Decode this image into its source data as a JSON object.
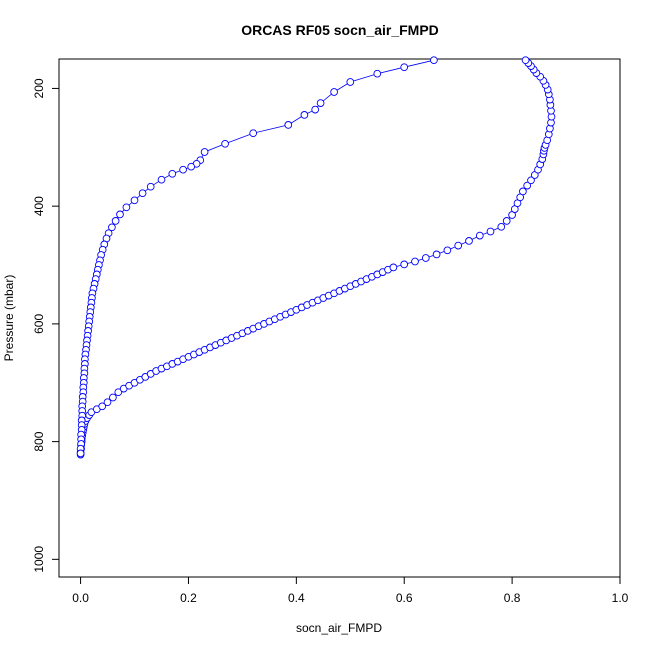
{
  "chart_data": {
    "type": "scatter",
    "title": "ORCAS RF05 socn_air_FMPD",
    "xlabel": "socn_air_FMPD",
    "ylabel": "Pressure (mbar)",
    "xlim": [
      -0.04,
      1.0
    ],
    "ylim": [
      1030,
      150
    ],
    "y_reversed": true,
    "xticks": [
      "0.0",
      "0.2",
      "0.4",
      "0.6",
      "0.8",
      "1.0"
    ],
    "yticks": [
      "200",
      "400",
      "600",
      "800",
      "1000"
    ],
    "grid": false,
    "marker": "open-circle",
    "connected": true,
    "colors": {
      "series": "#0000ff"
    },
    "series": [
      {
        "points": [
          {
            "x": 0.0,
            "y": 822
          },
          {
            "x": 0.0,
            "y": 818
          },
          {
            "x": 0.001,
            "y": 812
          },
          {
            "x": 0.001,
            "y": 806
          },
          {
            "x": 0.002,
            "y": 800
          },
          {
            "x": 0.002,
            "y": 795
          },
          {
            "x": 0.003,
            "y": 790
          },
          {
            "x": 0.004,
            "y": 785
          },
          {
            "x": 0.005,
            "y": 780
          },
          {
            "x": 0.006,
            "y": 775
          },
          {
            "x": 0.007,
            "y": 770
          },
          {
            "x": 0.009,
            "y": 765
          },
          {
            "x": 0.012,
            "y": 760
          },
          {
            "x": 0.016,
            "y": 755
          },
          {
            "x": 0.02,
            "y": 750
          },
          {
            "x": 0.03,
            "y": 745
          },
          {
            "x": 0.04,
            "y": 740
          },
          {
            "x": 0.05,
            "y": 733
          },
          {
            "x": 0.06,
            "y": 725
          },
          {
            "x": 0.07,
            "y": 716
          },
          {
            "x": 0.08,
            "y": 710
          },
          {
            "x": 0.09,
            "y": 705
          },
          {
            "x": 0.1,
            "y": 700
          },
          {
            "x": 0.11,
            "y": 695
          },
          {
            "x": 0.12,
            "y": 690
          },
          {
            "x": 0.13,
            "y": 685
          },
          {
            "x": 0.14,
            "y": 680
          },
          {
            "x": 0.15,
            "y": 676
          },
          {
            "x": 0.16,
            "y": 672
          },
          {
            "x": 0.17,
            "y": 668
          },
          {
            "x": 0.18,
            "y": 664
          },
          {
            "x": 0.19,
            "y": 660
          },
          {
            "x": 0.2,
            "y": 656
          },
          {
            "x": 0.21,
            "y": 652
          },
          {
            "x": 0.22,
            "y": 648
          },
          {
            "x": 0.23,
            "y": 644
          },
          {
            "x": 0.24,
            "y": 640
          },
          {
            "x": 0.25,
            "y": 636
          },
          {
            "x": 0.26,
            "y": 632
          },
          {
            "x": 0.27,
            "y": 628
          },
          {
            "x": 0.28,
            "y": 624
          },
          {
            "x": 0.29,
            "y": 620
          },
          {
            "x": 0.3,
            "y": 616
          },
          {
            "x": 0.31,
            "y": 612
          },
          {
            "x": 0.32,
            "y": 608
          },
          {
            "x": 0.33,
            "y": 604
          },
          {
            "x": 0.34,
            "y": 600
          },
          {
            "x": 0.35,
            "y": 596
          },
          {
            "x": 0.36,
            "y": 592
          },
          {
            "x": 0.37,
            "y": 588
          },
          {
            "x": 0.38,
            "y": 584
          },
          {
            "x": 0.39,
            "y": 580
          },
          {
            "x": 0.4,
            "y": 576
          },
          {
            "x": 0.41,
            "y": 572
          },
          {
            "x": 0.42,
            "y": 568
          },
          {
            "x": 0.43,
            "y": 564
          },
          {
            "x": 0.44,
            "y": 560
          },
          {
            "x": 0.45,
            "y": 556
          },
          {
            "x": 0.46,
            "y": 552
          },
          {
            "x": 0.47,
            "y": 548
          },
          {
            "x": 0.48,
            "y": 544
          },
          {
            "x": 0.49,
            "y": 540
          },
          {
            "x": 0.5,
            "y": 536
          },
          {
            "x": 0.51,
            "y": 532
          },
          {
            "x": 0.52,
            "y": 528
          },
          {
            "x": 0.53,
            "y": 524
          },
          {
            "x": 0.54,
            "y": 520
          },
          {
            "x": 0.55,
            "y": 516
          },
          {
            "x": 0.56,
            "y": 512
          },
          {
            "x": 0.57,
            "y": 508
          },
          {
            "x": 0.58,
            "y": 504
          },
          {
            "x": 0.6,
            "y": 499
          },
          {
            "x": 0.62,
            "y": 494
          },
          {
            "x": 0.64,
            "y": 488
          },
          {
            "x": 0.66,
            "y": 482
          },
          {
            "x": 0.68,
            "y": 475
          },
          {
            "x": 0.7,
            "y": 467
          },
          {
            "x": 0.72,
            "y": 459
          },
          {
            "x": 0.74,
            "y": 450
          },
          {
            "x": 0.76,
            "y": 443
          },
          {
            "x": 0.78,
            "y": 435
          },
          {
            "x": 0.79,
            "y": 425
          },
          {
            "x": 0.8,
            "y": 415
          },
          {
            "x": 0.805,
            "y": 405
          },
          {
            "x": 0.81,
            "y": 395
          },
          {
            "x": 0.815,
            "y": 385
          },
          {
            "x": 0.82,
            "y": 375
          },
          {
            "x": 0.828,
            "y": 365
          },
          {
            "x": 0.835,
            "y": 356
          },
          {
            "x": 0.842,
            "y": 347
          },
          {
            "x": 0.848,
            "y": 338
          },
          {
            "x": 0.852,
            "y": 329
          },
          {
            "x": 0.856,
            "y": 320
          },
          {
            "x": 0.858,
            "y": 312
          },
          {
            "x": 0.859,
            "y": 306
          },
          {
            "x": 0.86,
            "y": 301
          },
          {
            "x": 0.862,
            "y": 296
          },
          {
            "x": 0.865,
            "y": 288
          },
          {
            "x": 0.868,
            "y": 278
          },
          {
            "x": 0.87,
            "y": 268
          },
          {
            "x": 0.872,
            "y": 258
          },
          {
            "x": 0.873,
            "y": 248
          },
          {
            "x": 0.872,
            "y": 238
          },
          {
            "x": 0.871,
            "y": 228
          },
          {
            "x": 0.87,
            "y": 219
          },
          {
            "x": 0.868,
            "y": 210
          },
          {
            "x": 0.866,
            "y": 202
          },
          {
            "x": 0.862,
            "y": 194
          },
          {
            "x": 0.858,
            "y": 187
          },
          {
            "x": 0.852,
            "y": 180
          },
          {
            "x": 0.845,
            "y": 174
          },
          {
            "x": 0.84,
            "y": 168
          },
          {
            "x": 0.835,
            "y": 162
          },
          {
            "x": 0.83,
            "y": 157
          },
          {
            "x": 0.825,
            "y": 152
          }
        ]
      },
      {
        "points": [
          {
            "x": 0.655,
            "y": 152
          },
          {
            "x": 0.6,
            "y": 164
          },
          {
            "x": 0.55,
            "y": 175
          },
          {
            "x": 0.5,
            "y": 189
          },
          {
            "x": 0.47,
            "y": 206
          },
          {
            "x": 0.445,
            "y": 225
          },
          {
            "x": 0.435,
            "y": 236
          },
          {
            "x": 0.415,
            "y": 245
          },
          {
            "x": 0.385,
            "y": 262
          },
          {
            "x": 0.32,
            "y": 276
          },
          {
            "x": 0.268,
            "y": 294
          },
          {
            "x": 0.23,
            "y": 308
          },
          {
            "x": 0.222,
            "y": 322
          },
          {
            "x": 0.215,
            "y": 328
          },
          {
            "x": 0.205,
            "y": 333
          },
          {
            "x": 0.19,
            "y": 338
          },
          {
            "x": 0.17,
            "y": 345
          },
          {
            "x": 0.15,
            "y": 355
          },
          {
            "x": 0.13,
            "y": 367
          },
          {
            "x": 0.115,
            "y": 378
          },
          {
            "x": 0.1,
            "y": 390
          },
          {
            "x": 0.085,
            "y": 402
          },
          {
            "x": 0.073,
            "y": 414
          },
          {
            "x": 0.065,
            "y": 425
          },
          {
            "x": 0.058,
            "y": 436
          },
          {
            "x": 0.052,
            "y": 446
          },
          {
            "x": 0.048,
            "y": 455
          },
          {
            "x": 0.044,
            "y": 465
          },
          {
            "x": 0.041,
            "y": 474
          },
          {
            "x": 0.038,
            "y": 483
          },
          {
            "x": 0.036,
            "y": 492
          },
          {
            "x": 0.034,
            "y": 500
          },
          {
            "x": 0.032,
            "y": 508
          },
          {
            "x": 0.03,
            "y": 516
          },
          {
            "x": 0.028,
            "y": 524
          },
          {
            "x": 0.026,
            "y": 532
          },
          {
            "x": 0.024,
            "y": 540
          },
          {
            "x": 0.022,
            "y": 548
          },
          {
            "x": 0.021,
            "y": 556
          },
          {
            "x": 0.02,
            "y": 564
          },
          {
            "x": 0.019,
            "y": 572
          },
          {
            "x": 0.018,
            "y": 580
          },
          {
            "x": 0.017,
            "y": 588
          },
          {
            "x": 0.016,
            "y": 596
          },
          {
            "x": 0.015,
            "y": 604
          },
          {
            "x": 0.014,
            "y": 612
          },
          {
            "x": 0.013,
            "y": 620
          },
          {
            "x": 0.012,
            "y": 628
          },
          {
            "x": 0.011,
            "y": 636
          },
          {
            "x": 0.01,
            "y": 644
          },
          {
            "x": 0.009,
            "y": 652
          },
          {
            "x": 0.008,
            "y": 660
          },
          {
            "x": 0.008,
            "y": 668
          },
          {
            "x": 0.007,
            "y": 676
          },
          {
            "x": 0.007,
            "y": 684
          },
          {
            "x": 0.006,
            "y": 692
          },
          {
            "x": 0.006,
            "y": 700
          },
          {
            "x": 0.005,
            "y": 708
          },
          {
            "x": 0.005,
            "y": 716
          },
          {
            "x": 0.004,
            "y": 724
          },
          {
            "x": 0.004,
            "y": 732
          },
          {
            "x": 0.003,
            "y": 740
          },
          {
            "x": 0.003,
            "y": 748
          },
          {
            "x": 0.003,
            "y": 756
          },
          {
            "x": 0.002,
            "y": 764
          },
          {
            "x": 0.002,
            "y": 772
          },
          {
            "x": 0.002,
            "y": 780
          },
          {
            "x": 0.001,
            "y": 788
          },
          {
            "x": 0.001,
            "y": 796
          },
          {
            "x": 0.001,
            "y": 804
          },
          {
            "x": 0.0,
            "y": 812
          },
          {
            "x": 0.0,
            "y": 820
          }
        ]
      }
    ]
  }
}
